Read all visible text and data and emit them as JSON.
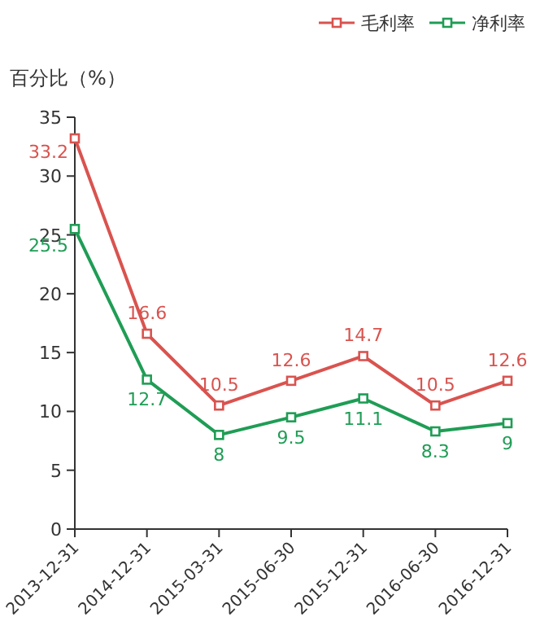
{
  "chart_data": {
    "type": "line",
    "ylabel": "百分比（%）",
    "categories": [
      "2013-12-31",
      "2014-12-31",
      "2015-03-31",
      "2015-06-30",
      "2015-12-31",
      "2016-06-30",
      "2016-12-31"
    ],
    "series": [
      {
        "name": "毛利率",
        "color": "#d9534f",
        "values": [
          33.2,
          16.6,
          10.5,
          12.6,
          14.7,
          10.5,
          12.6
        ]
      },
      {
        "name": "净利率",
        "color": "#1f9d55",
        "values": [
          25.5,
          12.7,
          8,
          9.5,
          11.1,
          8.3,
          9
        ]
      }
    ],
    "ylim": [
      0,
      35
    ],
    "yticks": [
      0,
      5,
      10,
      15,
      20,
      25,
      30,
      35
    ],
    "marker": "square",
    "legend": "top right",
    "data_labels": true
  }
}
